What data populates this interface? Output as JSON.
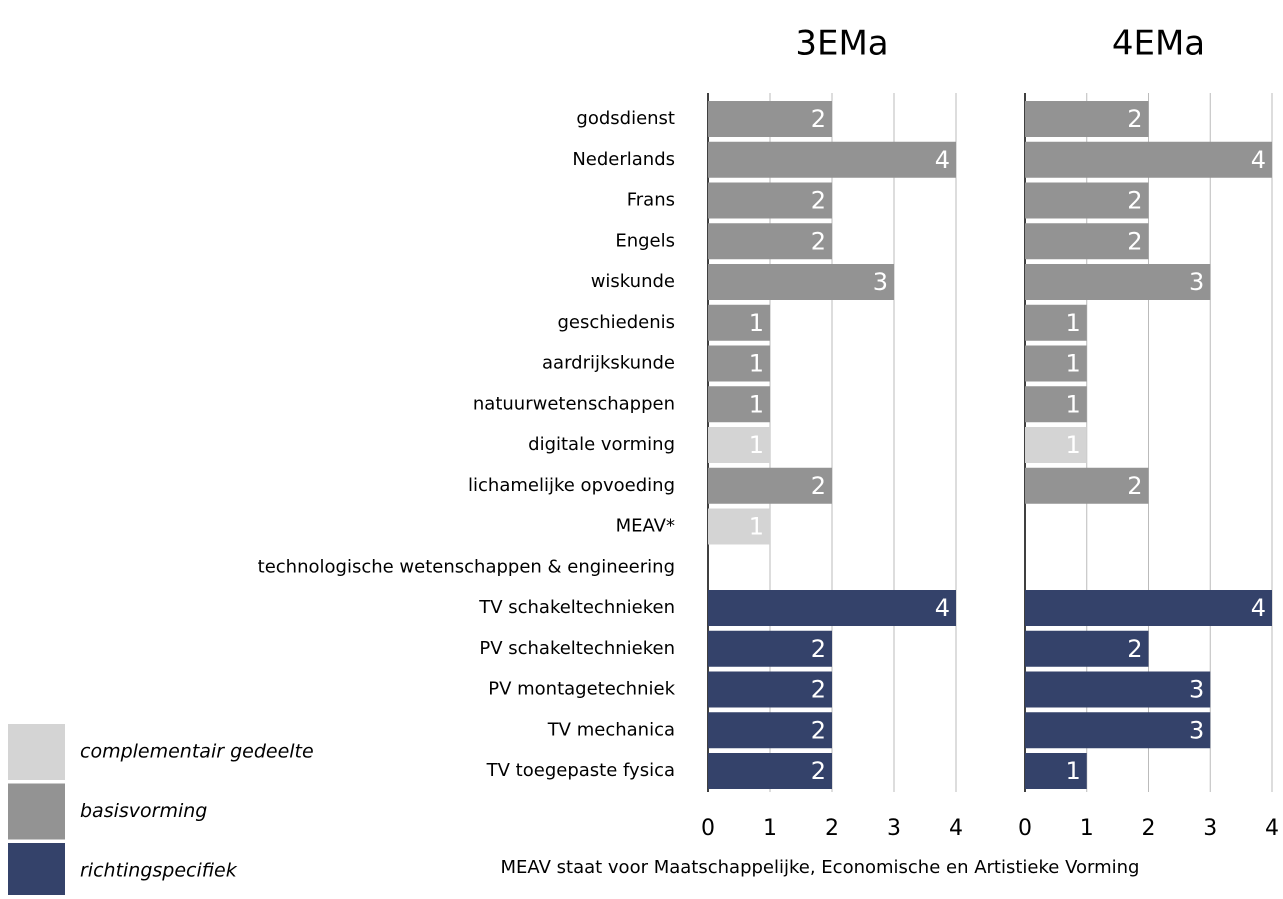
{
  "chart_data": {
    "type": "bar",
    "orientation": "horizontal",
    "categories": [
      "godsdienst",
      "Nederlands",
      "Frans",
      "Engels",
      "wiskunde",
      "geschiedenis",
      "aardrijkskunde",
      "natuurwetenschappen",
      "digitale vorming",
      "lichamelijke opvoeding",
      "MEAV*",
      "technologische wetenschappen & engineering",
      "TV schakeltechnieken",
      "PV schakeltechnieken",
      "PV montagetechniek",
      "TV mechanica",
      "TV toegepaste fysica"
    ],
    "xlim": [
      0,
      4
    ],
    "xticks": [
      0,
      1,
      2,
      3,
      4
    ],
    "grid": true,
    "footnote": "MEAV staat voor Maatschappelijke, Economische en Artistieke Vorming",
    "series": [
      {
        "name": "complementair gedeelte",
        "color": "#d4d4d4"
      },
      {
        "name": "basisvorming",
        "color": "#939393"
      },
      {
        "name": "richtingspecifiek",
        "color": "#34426a"
      }
    ],
    "panels": [
      {
        "title": "3EMa",
        "series": [
          {
            "values": [
              null,
              null,
              null,
              null,
              null,
              null,
              null,
              null,
              1,
              null,
              1,
              null,
              null,
              null,
              null,
              null,
              null
            ]
          },
          {
            "values": [
              2,
              4,
              2,
              2,
              3,
              1,
              1,
              1,
              null,
              2,
              null,
              null,
              null,
              null,
              null,
              null,
              null
            ]
          },
          {
            "values": [
              null,
              null,
              null,
              null,
              null,
              null,
              null,
              null,
              null,
              null,
              null,
              null,
              4,
              2,
              2,
              2,
              2
            ]
          }
        ]
      },
      {
        "title": "4EMa",
        "series": [
          {
            "values": [
              null,
              null,
              null,
              null,
              null,
              null,
              null,
              null,
              1,
              null,
              null,
              null,
              null,
              null,
              null,
              null,
              null
            ]
          },
          {
            "values": [
              2,
              4,
              2,
              2,
              3,
              1,
              1,
              1,
              null,
              2,
              null,
              null,
              null,
              null,
              null,
              null,
              null
            ]
          },
          {
            "values": [
              null,
              null,
              null,
              null,
              null,
              null,
              null,
              null,
              null,
              null,
              null,
              null,
              4,
              2,
              3,
              3,
              1
            ]
          }
        ]
      }
    ]
  }
}
